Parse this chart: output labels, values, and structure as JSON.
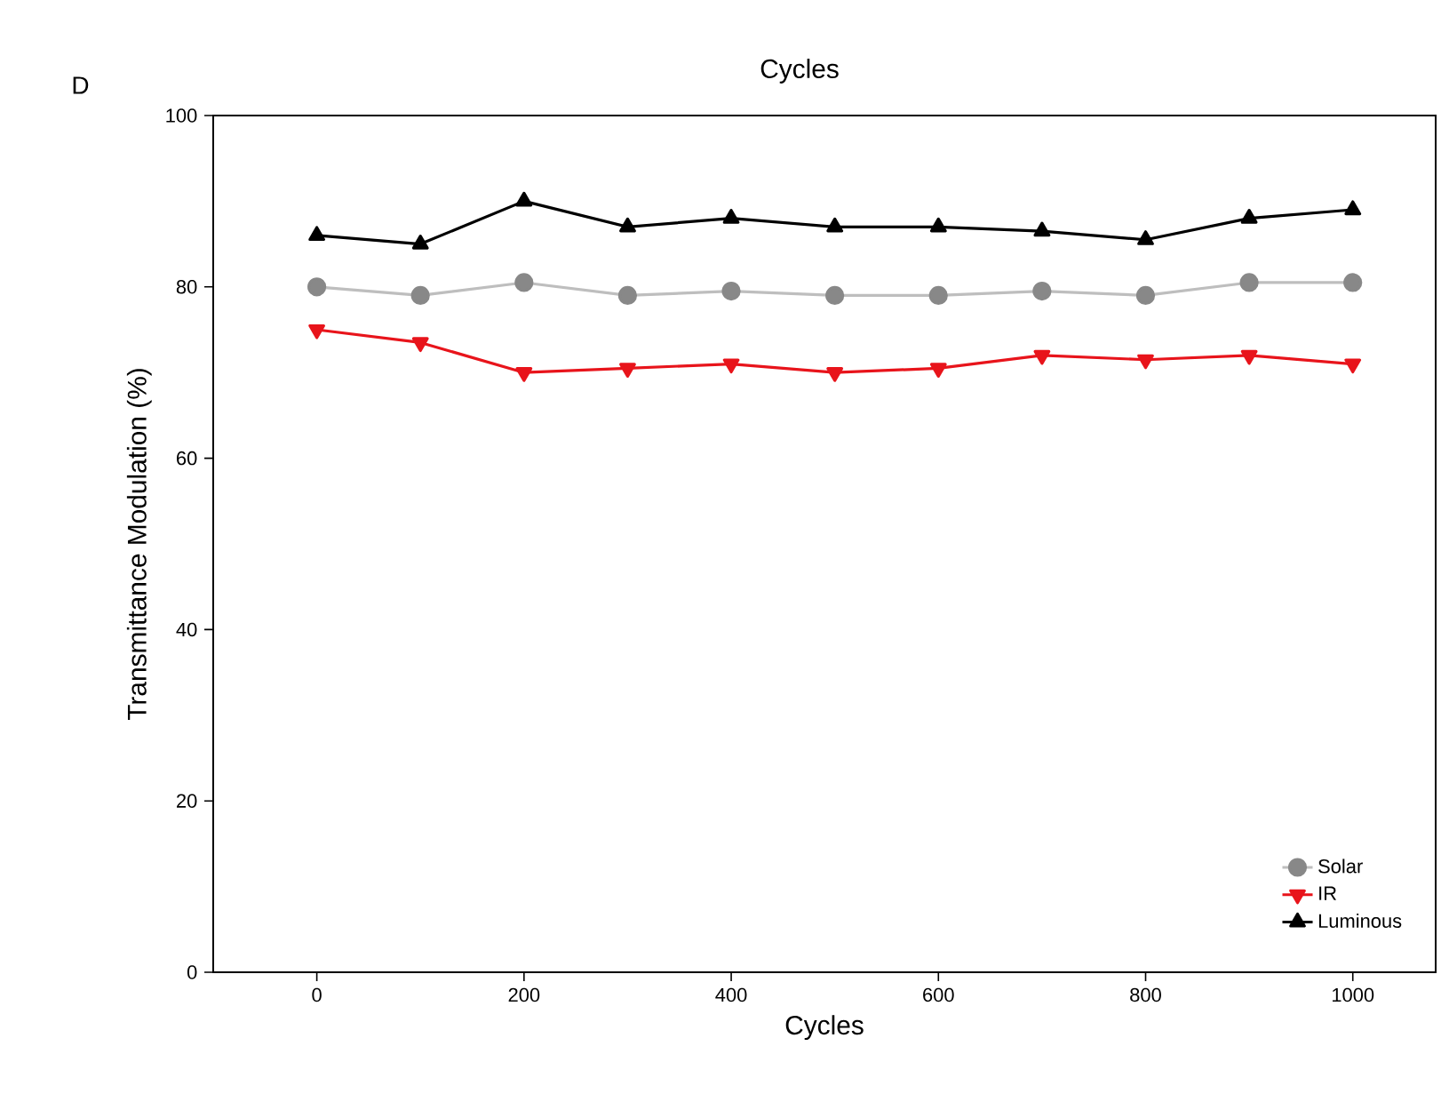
{
  "chart_data": {
    "type": "line",
    "xlabel": "Cycles",
    "ylabel": "Transmittance Modulation (%)",
    "annotations": [
      "D",
      "Cycles"
    ],
    "x": [
      0,
      100,
      200,
      300,
      400,
      500,
      600,
      700,
      800,
      900,
      1000
    ],
    "series": [
      {
        "name": "Solar",
        "color": "#888888",
        "marker": "circle",
        "values": [
          80,
          79,
          80.5,
          79,
          79.5,
          79,
          79,
          79.5,
          79,
          80.5,
          80.5
        ]
      },
      {
        "name": "IR",
        "color": "#e8141b",
        "marker": "triangle-down",
        "values": [
          75,
          73.5,
          70,
          70.5,
          71,
          70,
          70.5,
          72,
          71.5,
          72,
          71
        ]
      },
      {
        "name": "Luminous",
        "color": "#000000",
        "marker": "triangle",
        "values": [
          86,
          85,
          90,
          87,
          88,
          87,
          87,
          86.5,
          85.5,
          88,
          89
        ]
      }
    ],
    "xlim": [
      -100,
      1080
    ],
    "ylim": [
      0,
      100
    ],
    "xticks": [
      0,
      200,
      400,
      600,
      800,
      1000
    ],
    "yticks": [
      0,
      20,
      40,
      60,
      80,
      100
    ],
    "legend": "bottom right",
    "grid": false,
    "line_style": "solid"
  }
}
